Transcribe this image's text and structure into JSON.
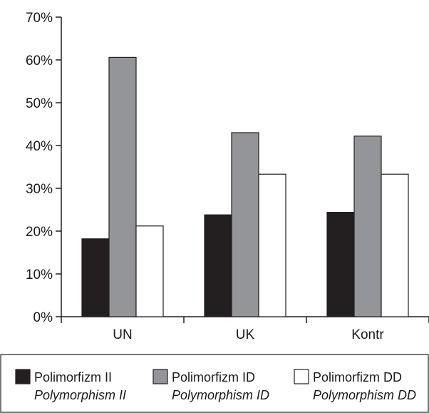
{
  "chart_data": {
    "type": "bar",
    "categories": [
      "UN",
      "UK",
      "Kontr"
    ],
    "series": [
      {
        "name": "Polimorfizm II",
        "name_en": "Polymorphism II",
        "color": "#231f20",
        "values": [
          18.2,
          23.8,
          24.4
        ]
      },
      {
        "name": "Polimorfizm ID",
        "name_en": "Polymorphism ID",
        "color": "#939598",
        "values": [
          60.6,
          43.0,
          42.2
        ]
      },
      {
        "name": "Polimorfizm DD",
        "name_en": "Polymorphism DD",
        "color": "#ffffff",
        "values": [
          21.2,
          33.3,
          33.3
        ]
      }
    ],
    "ylim": [
      0,
      70
    ],
    "yticks": [
      0,
      10,
      20,
      30,
      40,
      50,
      60,
      70
    ],
    "ytick_labels": [
      "0%",
      "10%",
      "20%",
      "30%",
      "40%",
      "50%",
      "60%",
      "70%"
    ],
    "grid": false,
    "legend_position": "bottom"
  }
}
